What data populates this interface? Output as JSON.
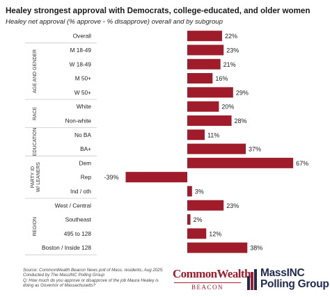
{
  "title": "Healey strongest approval with Democrats, college-educated, and older women",
  "subtitle": "Healey net approval (% approve - % disapprove) overall and by subgroup",
  "colors": {
    "bar": "#a01c2b",
    "divider": "#c8c8c8",
    "text": "#1a1a1a"
  },
  "chart_data": {
    "type": "bar",
    "orientation": "horizontal",
    "title": "Healey strongest approval with Democrats, college-educated, and older women",
    "subtitle": "Healey net approval (% approve - % disapprove) overall and by subgroup",
    "value_suffix": "%",
    "categories": [
      "Overall",
      "M 18-49",
      "W 18-49",
      "M 50+",
      "W 50+",
      "White",
      "Non-white",
      "No BA",
      "BA+",
      "Dem",
      "Rep",
      "Ind / oth",
      "West / Central",
      "Southeast",
      "495 to 128",
      "Boston / Inside 128"
    ],
    "values": [
      22,
      23,
      21,
      16,
      29,
      20,
      28,
      11,
      37,
      67,
      -39,
      3,
      23,
      2,
      12,
      38
    ],
    "xlim": [
      -40,
      70
    ],
    "groups": [
      {
        "label": "",
        "count": 1
      },
      {
        "label": "AGE AND GENDER",
        "count": 4
      },
      {
        "label": "RACE",
        "count": 2
      },
      {
        "label": "EDUCATION",
        "count": 2
      },
      {
        "label": "PARTY ID W/ LEANERS",
        "count": 3
      },
      {
        "label": "REGION",
        "count": 4
      }
    ],
    "grid": false,
    "legend": "none"
  },
  "footer": {
    "source": "Source: CommonWealth Beacon News poll of Mass. residents, Aug 2025.",
    "conducted": "Conducted by The MassINC Polling Group",
    "question_1": "Q: How much do you approve or disapprove of the job Maura Healey is",
    "question_2": "doing as Governor of Massachusetts?"
  },
  "logos": {
    "commonwealth": {
      "name": "CommonWealth",
      "sub": "BEACON"
    },
    "massinc": {
      "line1": "MassINC",
      "line2": "Polling Group"
    }
  }
}
